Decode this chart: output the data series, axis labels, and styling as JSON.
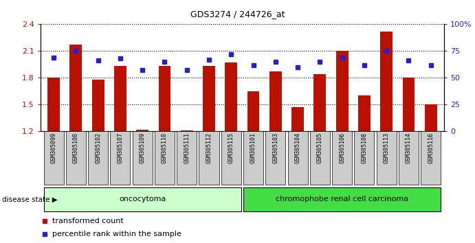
{
  "title": "GDS3274 / 244726_at",
  "samples": [
    "GSM305099",
    "GSM305100",
    "GSM305102",
    "GSM305107",
    "GSM305109",
    "GSM305110",
    "GSM305111",
    "GSM305112",
    "GSM305115",
    "GSM305101",
    "GSM305103",
    "GSM305104",
    "GSM305105",
    "GSM305106",
    "GSM305108",
    "GSM305113",
    "GSM305114",
    "GSM305116"
  ],
  "bar_values": [
    1.8,
    2.17,
    1.78,
    1.93,
    1.22,
    1.93,
    1.21,
    1.93,
    1.97,
    1.65,
    1.87,
    1.47,
    1.84,
    2.1,
    1.6,
    2.32,
    1.8,
    1.5
  ],
  "percentile_values": [
    69,
    75,
    66,
    68,
    57,
    65,
    57,
    67,
    72,
    62,
    65,
    60,
    65,
    69,
    62,
    75,
    66,
    62
  ],
  "ylim_left": [
    1.2,
    2.4
  ],
  "ylim_right": [
    0,
    100
  ],
  "yticks_left": [
    1.2,
    1.5,
    1.8,
    2.1,
    2.4
  ],
  "yticks_right": [
    0,
    25,
    50,
    75,
    100
  ],
  "ytick_labels_right": [
    "0",
    "25",
    "50",
    "75",
    "100%"
  ],
  "bar_color": "#BB1100",
  "percentile_color": "#2222CC",
  "group1_label": "oncocytoma",
  "group2_label": "chromophobe renal cell carcinoma",
  "group1_count": 9,
  "group2_count": 9,
  "disease_state_label": "disease state",
  "legend_bar_label": "transformed count",
  "legend_pct_label": "percentile rank within the sample",
  "group1_color": "#CCFFCC",
  "group2_color": "#44DD44",
  "tick_label_bg": "#CCCCCC",
  "bar_width": 0.55,
  "fig_width": 6.91,
  "fig_height": 3.54,
  "dpi": 100
}
